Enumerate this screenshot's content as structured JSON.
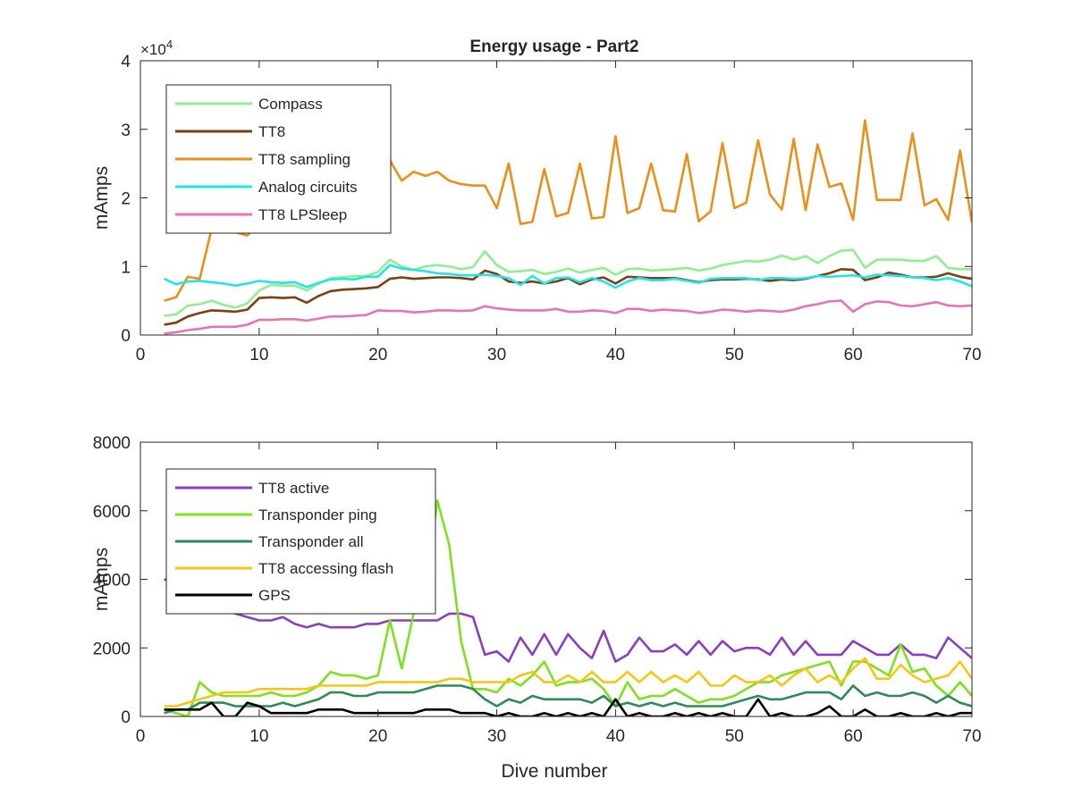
{
  "title": "Energy usage - Part2",
  "chart_data": [
    {
      "type": "line",
      "title": "Energy usage - Part2",
      "xlabel": "",
      "ylabel": "mAmps",
      "xlim": [
        0,
        70
      ],
      "ylim": [
        0,
        40000
      ],
      "xticks": [
        0,
        10,
        20,
        30,
        40,
        50,
        60,
        70
      ],
      "yticks": [
        0,
        10000,
        20000,
        30000,
        40000
      ],
      "ytick_labels": [
        "0",
        "1",
        "2",
        "3",
        "4"
      ],
      "exponent_label": "×10",
      "exponent_power": "4",
      "grid": false,
      "legend_position": "top-left",
      "x": [
        2,
        3,
        4,
        5,
        6,
        7,
        8,
        9,
        10,
        11,
        12,
        13,
        14,
        15,
        16,
        17,
        18,
        19,
        20,
        21,
        22,
        23,
        24,
        25,
        26,
        27,
        28,
        29,
        30,
        31,
        32,
        33,
        34,
        35,
        36,
        37,
        38,
        39,
        40,
        41,
        42,
        43,
        44,
        45,
        46,
        47,
        48,
        49,
        50,
        51,
        52,
        53,
        54,
        55,
        56,
        57,
        58,
        59,
        60,
        61,
        62,
        63,
        64,
        65,
        66,
        67,
        68,
        69,
        70
      ],
      "series": [
        {
          "name": "Compass",
          "color": "#90EE90",
          "values": [
            2800,
            3000,
            4300,
            4500,
            5000,
            4400,
            4000,
            4600,
            6500,
            7300,
            7200,
            7200,
            6500,
            7500,
            8300,
            8400,
            8600,
            8600,
            9200,
            11000,
            10000,
            9500,
            10000,
            10200,
            10000,
            9600,
            9900,
            12200,
            10200,
            9200,
            9300,
            9500,
            8900,
            9200,
            9700,
            9100,
            9500,
            9800,
            8800,
            9600,
            9700,
            9400,
            9500,
            9600,
            9800,
            9400,
            9700,
            10200,
            10500,
            10800,
            10700,
            11000,
            11600,
            11000,
            11500,
            10500,
            11500,
            12300,
            12400,
            9800,
            11000,
            11000,
            11000,
            10800,
            10800,
            11500,
            9800,
            9600,
            9600
          ]
        },
        {
          "name": "TT8",
          "color": "#7B3F14",
          "values": [
            1500,
            1800,
            2700,
            3200,
            3600,
            3500,
            3400,
            3700,
            5400,
            5500,
            5400,
            5500,
            4700,
            5700,
            6400,
            6600,
            6700,
            6800,
            7000,
            8200,
            8400,
            8200,
            8300,
            8400,
            8400,
            8300,
            8100,
            9400,
            8900,
            7800,
            7600,
            7800,
            7500,
            7800,
            8300,
            7400,
            8100,
            8400,
            7500,
            8500,
            8400,
            8300,
            8300,
            8300,
            8000,
            7700,
            8000,
            8100,
            8100,
            8200,
            8100,
            7900,
            8100,
            8000,
            8200,
            8600,
            9000,
            9600,
            9500,
            8000,
            8400,
            9100,
            8800,
            8400,
            8400,
            8500,
            9000,
            8500,
            8200
          ]
        },
        {
          "name": "TT8 sampling",
          "color": "#E8901A",
          "values": [
            5000,
            5500,
            8500,
            8200,
            15500,
            16000,
            15000,
            14500,
            16500,
            17000,
            16800,
            17000,
            17500,
            17800,
            18000,
            18500,
            19000,
            19000,
            19500,
            25500,
            22500,
            23800,
            23200,
            23800,
            22500,
            22000,
            21800,
            21800,
            18500,
            25000,
            16200,
            16500,
            24200,
            17300,
            17800,
            25000,
            17000,
            17200,
            29000,
            17800,
            18500,
            25000,
            18200,
            18000,
            26400,
            16600,
            18000,
            28000,
            18500,
            19300,
            28400,
            20500,
            18300,
            28600,
            18200,
            27800,
            21600,
            22100,
            16800,
            31300,
            19700,
            19700,
            19700,
            29400,
            18900,
            19800,
            16800,
            26900,
            16400
          ]
        },
        {
          "name": "Analog circuits",
          "color": "#22E5E5",
          "values": [
            8200,
            7400,
            7800,
            7900,
            7700,
            7500,
            7200,
            7500,
            7900,
            7700,
            7600,
            7700,
            7000,
            7600,
            8100,
            8200,
            8100,
            8500,
            8500,
            10200,
            9700,
            9500,
            9300,
            9000,
            8900,
            8700,
            8700,
            8800,
            8600,
            8300,
            7300,
            8600,
            7500,
            8300,
            8400,
            7700,
            8300,
            7800,
            6900,
            7800,
            8300,
            8000,
            8000,
            8200,
            7900,
            7600,
            8200,
            8300,
            8300,
            8300,
            8000,
            8300,
            8300,
            8200,
            8300,
            8600,
            8500,
            8600,
            8700,
            8400,
            8800,
            8700,
            8600,
            8400,
            8300,
            8000,
            8300,
            7800,
            7100
          ]
        },
        {
          "name": "TT8 LPSleep",
          "color": "#E873B4",
          "values": [
            200,
            400,
            700,
            900,
            1200,
            1200,
            1200,
            1500,
            2200,
            2200,
            2300,
            2300,
            2100,
            2400,
            2700,
            2700,
            2800,
            2900,
            3600,
            3500,
            3500,
            3300,
            3400,
            3600,
            3600,
            3500,
            3600,
            4200,
            3900,
            3700,
            3600,
            3600,
            3600,
            3800,
            3400,
            3400,
            3600,
            3500,
            3200,
            3800,
            3800,
            3500,
            3700,
            3600,
            3500,
            3200,
            3400,
            3700,
            3600,
            3400,
            3600,
            3500,
            3400,
            3700,
            4200,
            4500,
            4900,
            5000,
            3400,
            4500,
            4900,
            4800,
            4300,
            4200,
            4500,
            4800,
            4300,
            4200,
            4300
          ]
        }
      ]
    },
    {
      "type": "line",
      "title": "",
      "xlabel": "Dive number",
      "ylabel": "mAmps",
      "xlim": [
        0,
        70
      ],
      "ylim": [
        0,
        8000
      ],
      "xticks": [
        0,
        10,
        20,
        30,
        40,
        50,
        60,
        70
      ],
      "yticks": [
        0,
        2000,
        4000,
        6000,
        8000
      ],
      "ytick_labels": [
        "0",
        "2000",
        "4000",
        "6000",
        "8000"
      ],
      "grid": false,
      "legend_position": "top-left",
      "x": [
        2,
        3,
        4,
        5,
        6,
        7,
        8,
        9,
        10,
        11,
        12,
        13,
        14,
        15,
        16,
        17,
        18,
        19,
        20,
        21,
        22,
        23,
        24,
        25,
        26,
        27,
        28,
        29,
        30,
        31,
        32,
        33,
        34,
        35,
        36,
        37,
        38,
        39,
        40,
        41,
        42,
        43,
        44,
        45,
        46,
        47,
        48,
        49,
        50,
        51,
        52,
        53,
        54,
        55,
        56,
        57,
        58,
        59,
        60,
        61,
        62,
        63,
        64,
        65,
        66,
        67,
        68,
        69,
        70
      ],
      "series": [
        {
          "name": "TT8 active",
          "color": "#8B3FBF",
          "values": [
            4000,
            3900,
            3700,
            3700,
            3400,
            3100,
            3000,
            2900,
            2800,
            2800,
            2900,
            2700,
            2600,
            2700,
            2600,
            2600,
            2600,
            2700,
            2700,
            2800,
            2800,
            2800,
            2800,
            2800,
            3000,
            3000,
            2900,
            1800,
            1900,
            1600,
            2300,
            1800,
            2400,
            1800,
            2400,
            2000,
            1700,
            2500,
            1600,
            1800,
            2300,
            1900,
            1900,
            2100,
            1800,
            2200,
            1800,
            2200,
            1900,
            2000,
            2000,
            1800,
            2300,
            1800,
            2200,
            1800,
            1800,
            1800,
            2200,
            2000,
            1800,
            1800,
            2100,
            1800,
            1800,
            1700,
            2300,
            2000,
            1700
          ]
        },
        {
          "name": "Transponder ping",
          "color": "#7EE01F",
          "values": [
            200,
            100,
            0,
            1000,
            700,
            600,
            600,
            600,
            600,
            700,
            600,
            600,
            700,
            900,
            1300,
            1200,
            1200,
            1100,
            1200,
            2800,
            1400,
            3000,
            3500,
            6300,
            5000,
            2200,
            800,
            800,
            700,
            1100,
            900,
            1200,
            1600,
            900,
            1000,
            1000,
            1100,
            800,
            300,
            1000,
            500,
            600,
            600,
            800,
            600,
            400,
            500,
            500,
            600,
            800,
            1000,
            1000,
            1200,
            1300,
            1400,
            1500,
            1600,
            900,
            1600,
            1600,
            1400,
            1200,
            2100,
            1300,
            1400,
            900,
            600,
            1000,
            600
          ]
        },
        {
          "name": "Transponder all",
          "color": "#2E8B57",
          "values": [
            100,
            200,
            200,
            400,
            400,
            400,
            300,
            300,
            300,
            300,
            400,
            300,
            400,
            500,
            700,
            700,
            600,
            600,
            700,
            700,
            700,
            700,
            800,
            900,
            900,
            900,
            800,
            500,
            300,
            500,
            400,
            600,
            500,
            500,
            500,
            500,
            400,
            600,
            300,
            400,
            300,
            400,
            300,
            400,
            300,
            300,
            300,
            300,
            400,
            500,
            600,
            500,
            500,
            600,
            700,
            700,
            700,
            500,
            900,
            600,
            700,
            600,
            600,
            700,
            600,
            400,
            600,
            400,
            300
          ]
        },
        {
          "name": "TT8 accessing flash",
          "color": "#F5C518",
          "values": [
            300,
            300,
            400,
            500,
            600,
            700,
            700,
            700,
            800,
            800,
            800,
            800,
            800,
            900,
            900,
            900,
            900,
            900,
            1000,
            1000,
            1000,
            1000,
            1000,
            1000,
            1100,
            1100,
            1000,
            1000,
            1000,
            1000,
            1200,
            1300,
            1000,
            1000,
            1200,
            1000,
            1300,
            1000,
            1000,
            1300,
            1000,
            1300,
            1000,
            1200,
            1000,
            1300,
            900,
            900,
            1200,
            1000,
            1000,
            1200,
            900,
            1200,
            1400,
            1000,
            1200,
            1000,
            1400,
            1700,
            1100,
            1100,
            1500,
            1200,
            1000,
            1100,
            1200,
            1600,
            1100
          ]
        },
        {
          "name": "GPS",
          "color": "#000000",
          "values": [
            200,
            200,
            200,
            200,
            400,
            0,
            0,
            400,
            300,
            100,
            100,
            100,
            100,
            200,
            200,
            200,
            100,
            100,
            100,
            100,
            100,
            100,
            200,
            200,
            200,
            100,
            100,
            100,
            0,
            100,
            0,
            0,
            100,
            0,
            100,
            0,
            100,
            0,
            500,
            0,
            100,
            0,
            0,
            100,
            0,
            100,
            0,
            100,
            0,
            0,
            500,
            0,
            100,
            0,
            0,
            100,
            300,
            0,
            0,
            200,
            0,
            0,
            100,
            0,
            0,
            100,
            0,
            100,
            100
          ]
        }
      ]
    }
  ]
}
